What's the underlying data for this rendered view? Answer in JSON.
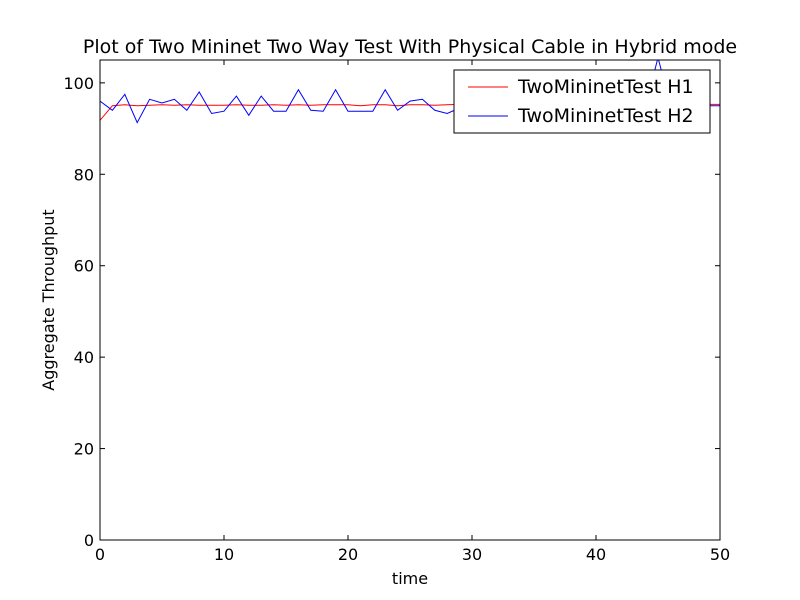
{
  "chart_data": {
    "type": "line",
    "title": "Plot of Two Mininet Two Way Test With Physical Cable in Hybrid mode",
    "xlabel": "time",
    "ylabel": "Aggregate Throughput",
    "xlim": [
      0,
      50
    ],
    "ylim": [
      0,
      105
    ],
    "xticks": [
      "0",
      "10",
      "20",
      "30",
      "40",
      "50"
    ],
    "yticks": [
      "0",
      "20",
      "40",
      "60",
      "80",
      "100"
    ],
    "grid": false,
    "legend_position": "top-right",
    "series": [
      {
        "name": "TwoMininetTest H1",
        "color": "#ff0000",
        "x": [
          0,
          1,
          2,
          3,
          4,
          5,
          6,
          7,
          8,
          9,
          10,
          11,
          12,
          13,
          14,
          15,
          16,
          17,
          18,
          19,
          20,
          21,
          22,
          23,
          24,
          25,
          26,
          27,
          28,
          29,
          30,
          31,
          32,
          33,
          34,
          35,
          36,
          37,
          38,
          39,
          40,
          41,
          42,
          43,
          44,
          45,
          46,
          47,
          48,
          49,
          50
        ],
        "y": [
          91.8,
          95.0,
          95.2,
          95.0,
          95.1,
          95.2,
          95.1,
          95.2,
          95.1,
          95.1,
          95.1,
          95.2,
          95.1,
          95.1,
          95.2,
          95.1,
          95.2,
          95.1,
          95.2,
          95.2,
          95.2,
          95.0,
          95.2,
          95.2,
          95.0,
          95.2,
          95.2,
          95.1,
          95.2,
          95.3,
          95.3,
          95.3,
          95.3,
          95.3,
          95.3,
          95.3,
          95.3,
          95.3,
          95.3,
          95.3,
          95.3,
          95.3,
          95.3,
          95.3,
          95.3,
          95.3,
          95.3,
          95.3,
          95.3,
          95.3,
          95.3
        ]
      },
      {
        "name": "TwoMininetTest H2",
        "color": "#0000ff",
        "x": [
          0,
          1,
          2,
          3,
          4,
          5,
          6,
          7,
          8,
          9,
          10,
          11,
          12,
          13,
          14,
          15,
          16,
          17,
          18,
          19,
          20,
          21,
          22,
          23,
          24,
          25,
          26,
          27,
          28,
          29,
          30,
          31,
          32,
          33,
          34,
          35,
          36,
          37,
          38,
          39,
          40,
          41,
          42,
          43,
          44,
          45,
          46,
          47,
          48,
          49,
          50
        ],
        "y": [
          96.0,
          94.0,
          97.5,
          91.3,
          96.4,
          95.6,
          96.4,
          94.0,
          98.0,
          93.3,
          93.8,
          97.1,
          92.9,
          97.1,
          93.8,
          93.8,
          98.5,
          94.0,
          93.8,
          98.5,
          93.8,
          93.8,
          93.8,
          98.5,
          94.0,
          96.0,
          96.4,
          94.0,
          93.3,
          94.5,
          95.0,
          95.0,
          95.0,
          95.5,
          94.8,
          95.0,
          95.2,
          95.0,
          95.0,
          95.0,
          95.0,
          95.0,
          95.0,
          95.0,
          95.0,
          105.5,
          95.2,
          95.0,
          95.0,
          95.0,
          95.0
        ]
      }
    ]
  }
}
